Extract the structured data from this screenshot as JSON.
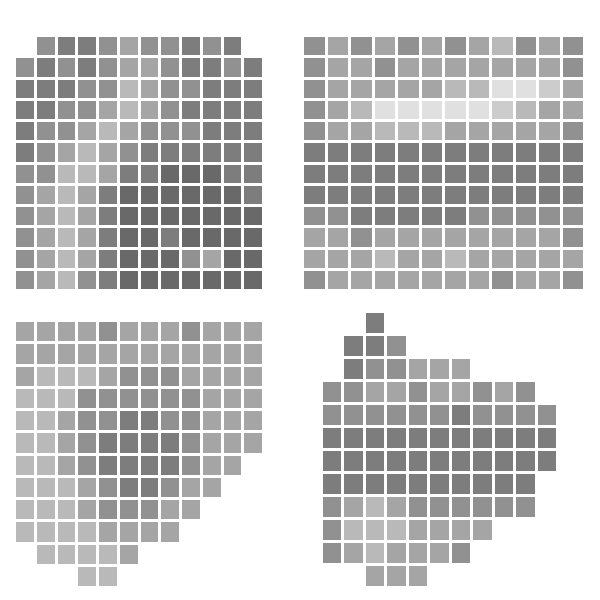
{
  "chart_data": [
    {
      "type": "heatmap",
      "tick_labels": false,
      "color_range": [
        0,
        10
      ],
      "z": [
        [
          null,
          5,
          6,
          6,
          5,
          4,
          5,
          5,
          6,
          5,
          6,
          null
        ],
        [
          5,
          6,
          5,
          6,
          5,
          4,
          4,
          5,
          6,
          6,
          5,
          6
        ],
        [
          6,
          6,
          6,
          5,
          5,
          3,
          4,
          5,
          5,
          6,
          6,
          6
        ],
        [
          6,
          6,
          5,
          5,
          4,
          3,
          4,
          5,
          6,
          6,
          6,
          6
        ],
        [
          6,
          5,
          5,
          4,
          3,
          4,
          5,
          5,
          5,
          6,
          6,
          6
        ],
        [
          6,
          5,
          4,
          3,
          4,
          5,
          6,
          6,
          6,
          6,
          6,
          6
        ],
        [
          5,
          5,
          3,
          3,
          4,
          6,
          6,
          7,
          7,
          7,
          6,
          6
        ],
        [
          5,
          4,
          3,
          4,
          6,
          7,
          7,
          7,
          7,
          7,
          7,
          6
        ],
        [
          5,
          4,
          3,
          4,
          6,
          7,
          7,
          7,
          7,
          7,
          7,
          7
        ],
        [
          5,
          4,
          3,
          4,
          6,
          7,
          7,
          6,
          7,
          7,
          7,
          7
        ],
        [
          5,
          4,
          3,
          4,
          6,
          7,
          7,
          7,
          5,
          4,
          7,
          7
        ],
        [
          5,
          4,
          3,
          5,
          6,
          7,
          7,
          7,
          7,
          7,
          7,
          7
        ]
      ]
    },
    {
      "type": "heatmap",
      "tick_labels": false,
      "color_range": [
        0,
        10
      ],
      "z": [
        [
          5,
          4,
          5,
          4,
          5,
          4,
          5,
          4,
          3,
          5,
          4,
          5
        ],
        [
          5,
          4,
          4,
          5,
          4,
          4,
          4,
          4,
          4,
          4,
          4,
          5
        ],
        [
          5,
          4,
          4,
          4,
          4,
          4,
          3,
          3,
          1,
          1,
          2,
          4
        ],
        [
          5,
          4,
          3,
          1,
          1,
          1,
          1,
          1,
          2,
          3,
          4,
          4
        ],
        [
          5,
          4,
          4,
          3,
          3,
          3,
          4,
          4,
          4,
          4,
          4,
          5
        ],
        [
          6,
          6,
          6,
          6,
          6,
          6,
          6,
          6,
          6,
          6,
          6,
          6
        ],
        [
          6,
          6,
          6,
          6,
          6,
          6,
          6,
          6,
          6,
          6,
          6,
          6
        ],
        [
          6,
          6,
          6,
          6,
          6,
          6,
          6,
          6,
          6,
          6,
          6,
          6
        ],
        [
          5,
          5,
          6,
          6,
          6,
          6,
          6,
          5,
          5,
          5,
          5,
          5
        ],
        [
          4,
          4,
          5,
          4,
          4,
          4,
          4,
          4,
          4,
          4,
          4,
          5
        ],
        [
          4,
          4,
          4,
          3,
          4,
          4,
          3,
          4,
          4,
          4,
          4,
          4
        ],
        [
          5,
          4,
          4,
          4,
          4,
          4,
          4,
          4,
          5,
          4,
          4,
          5
        ]
      ]
    },
    {
      "type": "heatmap",
      "tick_labels": false,
      "color_range": [
        0,
        10
      ],
      "z": [
        [
          4,
          4,
          4,
          4,
          5,
          4,
          4,
          4,
          5,
          4,
          4,
          4
        ],
        [
          4,
          4,
          4,
          4,
          4,
          4,
          4,
          4,
          4,
          4,
          4,
          4
        ],
        [
          4,
          3,
          3,
          3,
          4,
          5,
          5,
          5,
          4,
          4,
          4,
          4
        ],
        [
          3,
          3,
          3,
          5,
          5,
          5,
          5,
          5,
          5,
          4,
          4,
          4
        ],
        [
          3,
          3,
          4,
          5,
          5,
          6,
          6,
          5,
          5,
          4,
          4,
          4
        ],
        [
          3,
          3,
          4,
          5,
          6,
          6,
          6,
          6,
          5,
          4,
          4,
          4
        ],
        [
          3,
          3,
          4,
          5,
          6,
          6,
          6,
          6,
          5,
          4,
          4,
          null
        ],
        [
          3,
          3,
          3,
          4,
          5,
          6,
          6,
          5,
          4,
          4,
          null,
          null
        ],
        [
          3,
          3,
          3,
          4,
          5,
          5,
          5,
          4,
          4,
          null,
          null,
          null
        ],
        [
          3,
          3,
          3,
          3,
          4,
          4,
          4,
          4,
          null,
          null,
          null,
          null
        ],
        [
          null,
          3,
          3,
          3,
          3,
          4,
          null,
          null,
          null,
          null,
          null,
          null
        ],
        [
          null,
          null,
          null,
          3,
          3,
          null,
          null,
          null,
          null,
          null,
          null,
          null
        ]
      ]
    },
    {
      "type": "heatmap",
      "tick_labels": false,
      "color_range": [
        0,
        10
      ],
      "z": [
        [
          null,
          null,
          null,
          6,
          null,
          null,
          null,
          null,
          null,
          null,
          null,
          null
        ],
        [
          null,
          null,
          6,
          6,
          5,
          null,
          null,
          null,
          null,
          null,
          null,
          null
        ],
        [
          null,
          null,
          6,
          5,
          5,
          4,
          4,
          4,
          null,
          null,
          null,
          null
        ],
        [
          null,
          5,
          5,
          4,
          4,
          5,
          4,
          4,
          5,
          4,
          5,
          null
        ],
        [
          null,
          5,
          5,
          5,
          5,
          5,
          5,
          6,
          5,
          5,
          5,
          5
        ],
        [
          null,
          6,
          6,
          6,
          6,
          6,
          6,
          6,
          6,
          6,
          6,
          6
        ],
        [
          null,
          6,
          6,
          6,
          6,
          6,
          6,
          6,
          6,
          6,
          6,
          6
        ],
        [
          null,
          6,
          6,
          6,
          6,
          6,
          6,
          6,
          6,
          6,
          6,
          null
        ],
        [
          null,
          5,
          4,
          3,
          4,
          5,
          5,
          5,
          5,
          5,
          5,
          null
        ],
        [
          null,
          5,
          3,
          3,
          3,
          4,
          4,
          4,
          4,
          null,
          null,
          null
        ],
        [
          null,
          5,
          4,
          3,
          4,
          4,
          4,
          5,
          null,
          null,
          null,
          null
        ],
        [
          null,
          null,
          null,
          4,
          4,
          4,
          null,
          null,
          null,
          null,
          null,
          null
        ]
      ]
    }
  ]
}
